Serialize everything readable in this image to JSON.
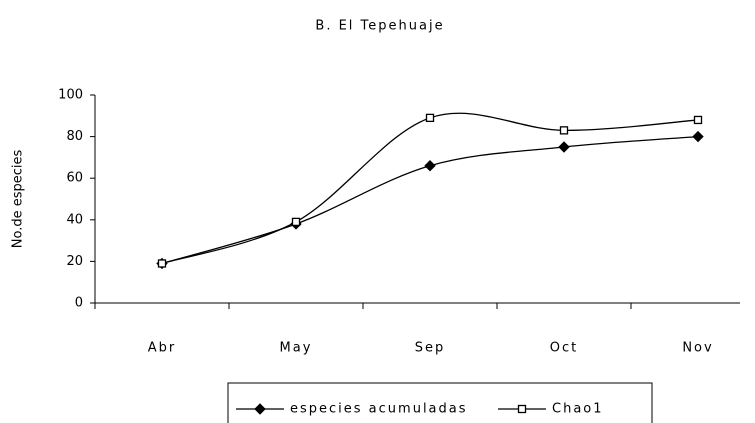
{
  "chart_data": {
    "type": "line",
    "title": "B. El Tepehuaje",
    "y_label": "No.de especies",
    "categories": [
      "Abr",
      "May",
      "Sep",
      "Oct",
      "Nov"
    ],
    "series": [
      {
        "name": "especies acumuladas",
        "color": "#000000",
        "marker": "diamond",
        "values": [
          19,
          38,
          66,
          75,
          80
        ]
      },
      {
        "name": "Chao1",
        "color": "#000000",
        "marker": "square",
        "values": [
          19,
          39,
          89,
          83,
          88
        ]
      }
    ],
    "ylim": [
      0,
      100
    ],
    "yticks": [
      0,
      20,
      40,
      60,
      80,
      100
    ],
    "grid": false,
    "smooth": true,
    "legend": "bottom"
  }
}
